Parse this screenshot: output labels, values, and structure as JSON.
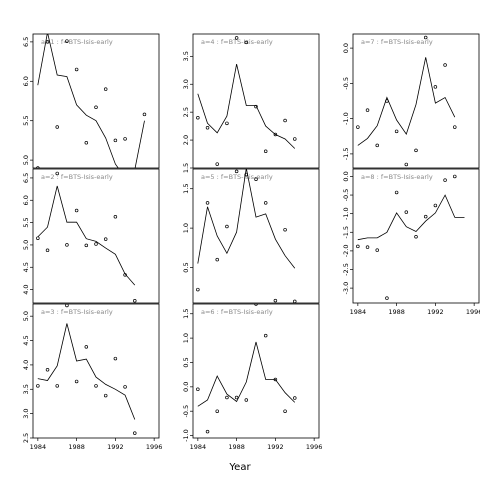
{
  "xlabel": "Year",
  "chart_data": [
    {
      "type": "scatter",
      "strip": "a=1 : f=BTS-Isis-early",
      "xlim": [
        1983.5,
        1996.5
      ],
      "ylim": [
        4.9,
        6.6
      ],
      "xticks": [],
      "yticks": [
        "5.0",
        "5.5",
        "6.0",
        "6.5"
      ],
      "ytick_values": [
        5.0,
        5.5,
        6.0,
        6.5
      ],
      "points": [
        [
          1984,
          4.9
        ],
        [
          1985,
          6.5
        ],
        [
          1986,
          5.42
        ],
        [
          1987,
          6.51
        ],
        [
          1988,
          6.15
        ],
        [
          1989,
          5.22
        ],
        [
          1990,
          5.67
        ],
        [
          1991,
          5.9
        ],
        [
          1992,
          5.25
        ],
        [
          1993,
          5.27
        ],
        [
          1994,
          4.7
        ],
        [
          1995,
          5.58
        ]
      ],
      "fit": [
        [
          1984,
          5.95
        ],
        [
          1985,
          6.62
        ],
        [
          1986,
          6.08
        ],
        [
          1987,
          6.06
        ],
        [
          1988,
          5.7
        ],
        [
          1989,
          5.57
        ],
        [
          1990,
          5.5
        ],
        [
          1991,
          5.28
        ],
        [
          1992,
          4.95
        ],
        [
          1993,
          4.78
        ],
        [
          1994,
          4.88
        ],
        [
          1995,
          5.5
        ]
      ]
    },
    {
      "type": "scatter",
      "strip": "a=4 : f=BTS-Isis-early",
      "xlim": [
        1983.5,
        1996.5
      ],
      "ylim": [
        1.5,
        3.9
      ],
      "xticks": [],
      "yticks": [
        "1.5",
        "2.0",
        "2.5",
        "3.0",
        "3.5"
      ],
      "ytick_values": [
        1.5,
        2.0,
        2.5,
        3.0,
        3.5
      ],
      "points": [
        [
          1984,
          2.4
        ],
        [
          1985,
          2.22
        ],
        [
          1986,
          1.57
        ],
        [
          1987,
          2.3
        ],
        [
          1988,
          3.83
        ],
        [
          1989,
          3.75
        ],
        [
          1990,
          2.6
        ],
        [
          1991,
          1.8
        ],
        [
          1992,
          2.1
        ],
        [
          1993,
          2.35
        ],
        [
          1994,
          2.02
        ]
      ],
      "fit": [
        [
          1984,
          2.83
        ],
        [
          1985,
          2.3
        ],
        [
          1986,
          2.13
        ],
        [
          1987,
          2.43
        ],
        [
          1988,
          3.36
        ],
        [
          1989,
          2.62
        ],
        [
          1990,
          2.62
        ],
        [
          1991,
          2.25
        ],
        [
          1992,
          2.1
        ],
        [
          1993,
          2.02
        ],
        [
          1994,
          1.85
        ]
      ]
    },
    {
      "type": "scatter",
      "strip": "a=7 : f=BTS-Isis-early",
      "xlim": [
        1983.5,
        1996.5
      ],
      "ylim": [
        -1.7,
        0.2
      ],
      "xticks": [],
      "yticks": [
        "-1.5",
        "-1.0",
        "-0.5",
        "0.0"
      ],
      "ytick_values": [
        -1.5,
        -1.0,
        -0.5,
        0.0
      ],
      "points": [
        [
          1984,
          -1.12
        ],
        [
          1985,
          -0.88
        ],
        [
          1986,
          -1.38
        ],
        [
          1987,
          -0.75
        ],
        [
          1988,
          -1.18
        ],
        [
          1989,
          -1.65
        ],
        [
          1990,
          -1.45
        ],
        [
          1991,
          0.15
        ],
        [
          1992,
          -0.55
        ],
        [
          1993,
          -0.24
        ],
        [
          1994,
          -1.12
        ]
      ],
      "fit": [
        [
          1984,
          -1.38
        ],
        [
          1985,
          -1.28
        ],
        [
          1986,
          -1.1
        ],
        [
          1987,
          -0.7
        ],
        [
          1988,
          -1.02
        ],
        [
          1989,
          -1.22
        ],
        [
          1990,
          -0.8
        ],
        [
          1991,
          -0.13
        ],
        [
          1992,
          -0.78
        ],
        [
          1993,
          -0.7
        ],
        [
          1994,
          -0.98
        ]
      ]
    },
    {
      "type": "scatter",
      "strip": "a=2 : f=BTS-Isis-early",
      "xlim": [
        1983.5,
        1996.5
      ],
      "ylim": [
        3.7,
        6.7
      ],
      "xticks": [],
      "yticks": [
        "4.0",
        "4.5",
        "5.0",
        "5.5",
        "6.0",
        "6.5"
      ],
      "ytick_values": [
        4.0,
        4.5,
        5.0,
        5.5,
        6.0,
        6.5
      ],
      "points": [
        [
          1984,
          5.15
        ],
        [
          1985,
          4.88
        ],
        [
          1986,
          6.6
        ],
        [
          1987,
          5.0
        ],
        [
          1988,
          5.77
        ],
        [
          1989,
          4.99
        ],
        [
          1990,
          5.02
        ],
        [
          1991,
          5.13
        ],
        [
          1992,
          5.63
        ],
        [
          1993,
          4.33
        ],
        [
          1994,
          3.75
        ]
      ],
      "fit": [
        [
          1984,
          5.18
        ],
        [
          1985,
          5.4
        ],
        [
          1986,
          6.32
        ],
        [
          1987,
          5.51
        ],
        [
          1988,
          5.51
        ],
        [
          1989,
          5.14
        ],
        [
          1990,
          5.08
        ],
        [
          1991,
          4.93
        ],
        [
          1992,
          4.79
        ],
        [
          1993,
          4.35
        ],
        [
          1994,
          4.1
        ]
      ]
    },
    {
      "type": "scatter",
      "strip": "a=5 : f=BTS-Isis-early",
      "xlim": [
        1983.5,
        1996.5
      ],
      "ylim": [
        0.05,
        1.75
      ],
      "xticks": [],
      "yticks": [
        "0.5",
        "1.0",
        "1.5"
      ],
      "ytick_values": [
        0.5,
        1.0,
        1.5
      ],
      "points": [
        [
          1984,
          0.22
        ],
        [
          1985,
          1.32
        ],
        [
          1986,
          0.6
        ],
        [
          1987,
          1.02
        ],
        [
          1988,
          1.72
        ],
        [
          1989,
          1.68
        ],
        [
          1990,
          1.62
        ],
        [
          1991,
          1.32
        ],
        [
          1992,
          0.08
        ],
        [
          1993,
          0.98
        ],
        [
          1994,
          0.07
        ]
      ],
      "fit": [
        [
          1984,
          0.55
        ],
        [
          1985,
          1.27
        ],
        [
          1986,
          0.9
        ],
        [
          1987,
          0.68
        ],
        [
          1988,
          0.95
        ],
        [
          1989,
          1.76
        ],
        [
          1990,
          1.14
        ],
        [
          1991,
          1.18
        ],
        [
          1992,
          0.86
        ],
        [
          1993,
          0.65
        ],
        [
          1994,
          0.49
        ]
      ]
    },
    {
      "type": "scatter",
      "strip": "a=8 : f=BTS-Isis-early",
      "xlim": [
        1983.5,
        1996.5
      ],
      "ylim": [
        -3.4,
        0.2
      ],
      "xticks": [
        "1984",
        "1988",
        "1992",
        "1996"
      ],
      "xtick_values": [
        1984,
        1988,
        1992,
        1996
      ],
      "yticks": [
        "-3.0",
        "-2.5",
        "-2.0",
        "-1.5",
        "-1.0",
        "-0.5",
        "0.0"
      ],
      "ytick_values": [
        -3.0,
        -2.5,
        -2.0,
        -1.5,
        -1.0,
        -0.5,
        0.0
      ],
      "points": [
        [
          1984,
          -1.88
        ],
        [
          1985,
          -1.9
        ],
        [
          1986,
          -1.98
        ],
        [
          1987,
          -3.27
        ],
        [
          1988,
          -0.43
        ],
        [
          1989,
          -0.96
        ],
        [
          1990,
          -1.62
        ],
        [
          1991,
          -1.08
        ],
        [
          1992,
          -0.78
        ],
        [
          1993,
          -0.1
        ],
        [
          1994,
          0.0
        ]
      ],
      "fit": [
        [
          1984,
          -1.7
        ],
        [
          1985,
          -1.65
        ],
        [
          1986,
          -1.65
        ],
        [
          1987,
          -1.5
        ],
        [
          1988,
          -0.98
        ],
        [
          1989,
          -1.35
        ],
        [
          1990,
          -1.48
        ],
        [
          1991,
          -1.2
        ],
        [
          1992,
          -0.98
        ],
        [
          1993,
          -0.5
        ],
        [
          1994,
          -1.1
        ],
        [
          1995,
          -1.1
        ]
      ]
    },
    {
      "type": "scatter",
      "strip": "a=3 : f=BTS-Isis-early",
      "xlim": [
        1983.5,
        1996.5
      ],
      "ylim": [
        2.5,
        5.25
      ],
      "xticks": [
        "1984",
        "1988",
        "1992",
        "1996"
      ],
      "xtick_values": [
        1984,
        1988,
        1992,
        1996
      ],
      "yticks": [
        "2.5",
        "3.0",
        "3.5",
        "4.0",
        "4.5",
        "5.0"
      ],
      "ytick_values": [
        2.5,
        3.0,
        3.5,
        4.0,
        4.5,
        5.0
      ],
      "points": [
        [
          1984,
          3.57
        ],
        [
          1985,
          3.9
        ],
        [
          1986,
          3.57
        ],
        [
          1987,
          5.22
        ],
        [
          1988,
          3.66
        ],
        [
          1989,
          4.37
        ],
        [
          1990,
          3.57
        ],
        [
          1991,
          3.37
        ],
        [
          1992,
          4.13
        ],
        [
          1993,
          3.55
        ],
        [
          1994,
          2.6
        ]
      ],
      "fit": [
        [
          1984,
          3.72
        ],
        [
          1985,
          3.68
        ],
        [
          1986,
          3.98
        ],
        [
          1987,
          4.85
        ],
        [
          1988,
          4.08
        ],
        [
          1989,
          4.12
        ],
        [
          1990,
          3.75
        ],
        [
          1991,
          3.6
        ],
        [
          1992,
          3.5
        ],
        [
          1993,
          3.38
        ],
        [
          1994,
          2.88
        ]
      ]
    },
    {
      "type": "scatter",
      "strip": "a=6 : f=BTS-Isis-early",
      "xlim": [
        1983.5,
        1996.5
      ],
      "ylim": [
        -1.05,
        1.7
      ],
      "xticks": [
        "1984",
        "1988",
        "1992",
        "1996"
      ],
      "xtick_values": [
        1984,
        1988,
        1992,
        1996
      ],
      "yticks": [
        "-1.0",
        "-0.5",
        "0.0",
        "0.5",
        "1.0",
        "1.5"
      ],
      "ytick_values": [
        -1.0,
        -0.5,
        0.0,
        0.5,
        1.0,
        1.5
      ],
      "points": [
        [
          1984,
          -0.05
        ],
        [
          1985,
          -0.92
        ],
        [
          1986,
          -0.5
        ],
        [
          1987,
          -0.22
        ],
        [
          1988,
          -0.22
        ],
        [
          1989,
          -0.27
        ],
        [
          1990,
          1.7
        ],
        [
          1991,
          1.05
        ],
        [
          1992,
          0.15
        ],
        [
          1993,
          -0.5
        ],
        [
          1994,
          -0.23
        ]
      ],
      "fit": [
        [
          1984,
          -0.4
        ],
        [
          1985,
          -0.27
        ],
        [
          1986,
          0.22
        ],
        [
          1987,
          -0.15
        ],
        [
          1988,
          -0.3
        ],
        [
          1989,
          0.1
        ],
        [
          1990,
          0.92
        ],
        [
          1991,
          0.15
        ],
        [
          1992,
          0.15
        ],
        [
          1993,
          -0.12
        ],
        [
          1994,
          -0.32
        ]
      ]
    }
  ]
}
